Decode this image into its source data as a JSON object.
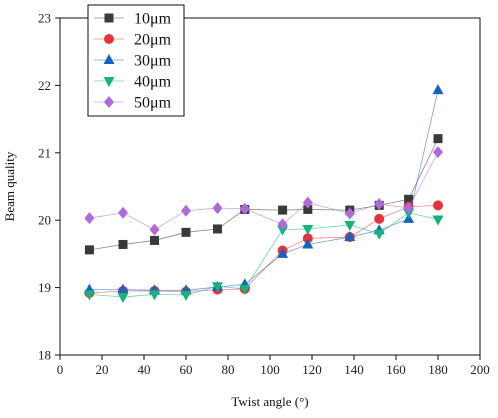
{
  "chart_data": {
    "type": "line",
    "xlabel": "Twist angle (°)",
    "ylabel": "Beam quality",
    "xlim": [
      0,
      200
    ],
    "ylim": [
      18,
      23
    ],
    "xticks": [
      0,
      20,
      40,
      60,
      80,
      100,
      120,
      140,
      160,
      180,
      200
    ],
    "yticks": [
      18,
      19,
      20,
      21,
      22,
      23
    ],
    "legend_position": "top-left",
    "grid": false,
    "series": [
      {
        "name": "10μm",
        "marker": "square",
        "color": "#3a3a3a",
        "x": [
          14,
          30,
          45,
          60,
          75,
          88,
          106,
          118,
          138,
          152,
          166,
          180
        ],
        "y": [
          19.56,
          19.64,
          19.7,
          19.82,
          19.87,
          20.16,
          20.15,
          20.16,
          20.15,
          20.22,
          20.31,
          21.21
        ]
      },
      {
        "name": "20μm",
        "marker": "circle",
        "color": "#e8333c",
        "x": [
          14,
          30,
          45,
          60,
          75,
          88,
          106,
          118,
          138,
          152,
          166,
          180
        ],
        "y": [
          18.92,
          18.95,
          18.95,
          18.94,
          18.97,
          18.98,
          19.55,
          19.73,
          19.75,
          20.02,
          20.2,
          20.22
        ]
      },
      {
        "name": "30μm",
        "marker": "triangle-up",
        "color": "#1565c0",
        "x": [
          14,
          30,
          45,
          60,
          75,
          88,
          106,
          118,
          138,
          152,
          166,
          180
        ],
        "y": [
          18.97,
          18.97,
          18.96,
          18.96,
          19.01,
          19.05,
          19.5,
          19.64,
          19.75,
          19.85,
          20.02,
          21.93
        ]
      },
      {
        "name": "40μm",
        "marker": "triangle-down",
        "color": "#16b279",
        "x": [
          14,
          30,
          45,
          60,
          75,
          88,
          106,
          118,
          138,
          152,
          166,
          180
        ],
        "y": [
          18.9,
          18.86,
          18.9,
          18.89,
          19.02,
          18.98,
          19.86,
          19.87,
          19.93,
          19.8,
          20.11,
          20.01
        ]
      },
      {
        "name": "50μm",
        "marker": "diamond",
        "color": "#b06ad8",
        "x": [
          14,
          30,
          45,
          60,
          75,
          88,
          106,
          118,
          138,
          152,
          166,
          180
        ],
        "y": [
          20.03,
          20.11,
          19.86,
          20.14,
          20.18,
          20.17,
          19.94,
          20.26,
          20.1,
          20.24,
          20.18,
          21.01
        ]
      }
    ]
  }
}
